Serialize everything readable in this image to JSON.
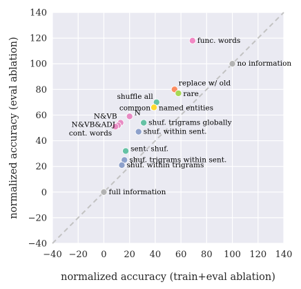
{
  "chart_data": {
    "type": "scatter",
    "xlabel": "normalized accuracy (train+eval ablation)",
    "ylabel": "normalized accuracy (eval ablation)",
    "xlim": [
      -40,
      140
    ],
    "ylim": [
      -40,
      140
    ],
    "xticks": [
      -40,
      -20,
      0,
      20,
      40,
      60,
      80,
      100,
      120,
      140
    ],
    "yticks": [
      -40,
      -20,
      0,
      20,
      40,
      60,
      80,
      100,
      120,
      140
    ],
    "xtick_labels": [
      "−40",
      "−20",
      "0",
      "20",
      "40",
      "60",
      "80",
      "100",
      "120",
      "140"
    ],
    "ytick_labels": [
      "−40",
      "−20",
      "0",
      "20",
      "40",
      "60",
      "80",
      "100",
      "120",
      "140"
    ],
    "grid": true,
    "diagonal_reference": true,
    "colors": {
      "background": "#eaeaf2",
      "grid": "#ffffff",
      "diagonal": "#c2c2c2"
    },
    "points": [
      {
        "label": "func. words",
        "x": 69,
        "y": 118,
        "color": "#f088c4"
      },
      {
        "label": "no information",
        "x": 100,
        "y": 100,
        "color": "#b3b3b3"
      },
      {
        "label": "replace w/ old",
        "x": 55,
        "y": 80,
        "color": "#fc8d62"
      },
      {
        "label": "rare",
        "x": 58,
        "y": 77,
        "color": "#a6d854"
      },
      {
        "label": "shuffle all",
        "x": 41,
        "y": 70,
        "color": "#66c2a5"
      },
      {
        "label": "common",
        "x": 39,
        "y": 66,
        "color": "#ffd92f"
      },
      {
        "label": "named entities",
        "x": 39,
        "y": 66,
        "color": "#ffd92f"
      },
      {
        "label": "N",
        "x": 20,
        "y": 59,
        "color": "#e78ac3"
      },
      {
        "label": "shuf. trigrams globally",
        "x": 31,
        "y": 54,
        "color": "#66c2a5"
      },
      {
        "label": "N&VB",
        "x": 13,
        "y": 54,
        "color": "#e78ac3"
      },
      {
        "label": "N&VB&ADJ",
        "x": 11,
        "y": 52,
        "color": "#e78ac3"
      },
      {
        "label": "cont. words",
        "x": 9,
        "y": 51,
        "color": "#e78ac3"
      },
      {
        "label": "shuf. within sent.",
        "x": 27,
        "y": 47,
        "color": "#8da0cb"
      },
      {
        "label": "sent. shuf.",
        "x": 17,
        "y": 32,
        "color": "#66c2a5"
      },
      {
        "label": "shuf. trigrams within sent.",
        "x": 16,
        "y": 25,
        "color": "#8da0cb"
      },
      {
        "label": "shuf. within trigrams",
        "x": 14,
        "y": 21,
        "color": "#8da0cb"
      },
      {
        "label": "full information",
        "x": 0,
        "y": 0,
        "color": "#b3b3b3"
      }
    ]
  }
}
